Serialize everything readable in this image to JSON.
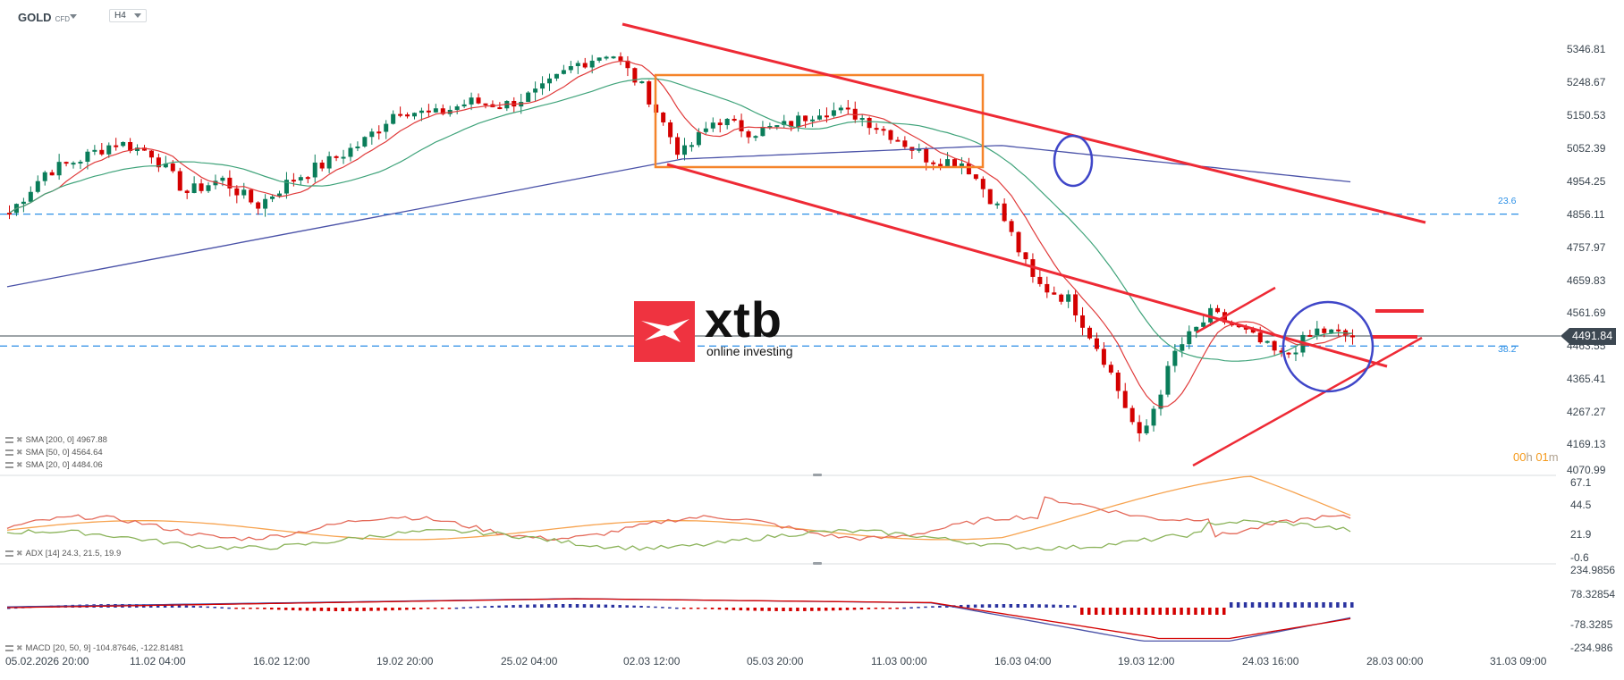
{
  "header": {
    "symbol": "GOLD",
    "symbol_type": "CFD",
    "timeframe": "H4"
  },
  "price_axis": {
    "labels": [
      "5346.81",
      "5248.67",
      "5150.53",
      "5052.39",
      "4954.25",
      "4856.11",
      "4757.97",
      "4659.83",
      "4561.69",
      "4463.55",
      "4365.41",
      "4267.27",
      "4169.13",
      "4070.99"
    ],
    "last_price": "4491.84"
  },
  "adx_axis": {
    "labels": [
      "67.1",
      "44.5",
      "21.9",
      "-0.6"
    ]
  },
  "macd_axis": {
    "labels": [
      "234.9856",
      "78.32854",
      "-78.3285",
      "-234.986"
    ]
  },
  "time_axis": {
    "labels": [
      "05.02.2026 20:00",
      "11.02 04:00",
      "16.02 12:00",
      "19.02 20:00",
      "25.02 04:00",
      "02.03 12:00",
      "05.03 20:00",
      "11.03 00:00",
      "16.03 04:00",
      "19.03 12:00",
      "24.03 16:00",
      "28.03 00:00",
      "31.03 09:00"
    ]
  },
  "indicators": {
    "sma200": "SMA [200, 0] 4967.88",
    "sma50": "SMA [50, 0] 4564.64",
    "sma20": "SMA [20, 0] 4484.06",
    "adx": "ADX [14] 24.3, 21.5, 19.9",
    "macd": "MACD [20, 50, 9] -104.87646, -122.81481"
  },
  "fib_levels": [
    {
      "label": "23.6",
      "price": 4856.11
    },
    {
      "label": "38.2",
      "price": 4463.55
    }
  ],
  "timer": {
    "hours": "00",
    "h": "h",
    "minutes": "01",
    "m": "m"
  },
  "logo": {
    "brand": "xtb",
    "tagline": "online investing"
  },
  "colors": {
    "bull": "#0a7d5a",
    "bear": "#d40000",
    "sma20": "#e03a3a",
    "sma50": "#3fa37a",
    "sma200": "#4a52a8",
    "trendline": "#ee2a35",
    "rect": "#f5842a",
    "circle": "#3f46c8",
    "fib": "#2b8fe6",
    "adx": "#f7a34f",
    "di_plus": "#8bb35a",
    "di_minus": "#e46a5a"
  },
  "chart_data": {
    "type": "candlestick",
    "title": "GOLD CFD H4",
    "instrument": "GOLD",
    "timeframe": "H4",
    "ylim": [
      4070.99,
      5346.81
    ],
    "last_price": 4491.84,
    "x_tick_labels": [
      "05.02.2026 20:00",
      "11.02 04:00",
      "16.02 12:00",
      "19.02 20:00",
      "25.02 04:00",
      "02.03 12:00",
      "05.03 20:00",
      "11.03 00:00",
      "16.03 04:00",
      "19.03 12:00",
      "24.03 16:00",
      "28.03 00:00",
      "31.03 09:00"
    ],
    "close_path_approx": [
      {
        "t": "05.02 20:00",
        "close": 4860
      },
      {
        "t": "07.02",
        "close": 4980
      },
      {
        "t": "09.02",
        "close": 5020
      },
      {
        "t": "11.02",
        "close": 5070
      },
      {
        "t": "13.02",
        "close": 5040
      },
      {
        "t": "14.02",
        "close": 4920
      },
      {
        "t": "16.02",
        "close": 4960
      },
      {
        "t": "17.02",
        "close": 4880
      },
      {
        "t": "18.02",
        "close": 4960
      },
      {
        "t": "19.02",
        "close": 5010
      },
      {
        "t": "20.02",
        "close": 5070
      },
      {
        "t": "22.02",
        "close": 5170
      },
      {
        "t": "24.02",
        "close": 5150
      },
      {
        "t": "25.02",
        "close": 5190
      },
      {
        "t": "26.02",
        "close": 5180
      },
      {
        "t": "27.02",
        "close": 5220
      },
      {
        "t": "01.03",
        "close": 5300
      },
      {
        "t": "02.03",
        "close": 5340
      },
      {
        "t": "02.03 12:00",
        "close": 5220
      },
      {
        "t": "03.03",
        "close": 5030
      },
      {
        "t": "04.03",
        "close": 5140
      },
      {
        "t": "06.03",
        "close": 5100
      },
      {
        "t": "08.03",
        "close": 5120
      },
      {
        "t": "10.03",
        "close": 5170
      },
      {
        "t": "12.03",
        "close": 5150
      },
      {
        "t": "13.03",
        "close": 5090
      },
      {
        "t": "15.03",
        "close": 5020
      },
      {
        "t": "17.03",
        "close": 5010
      },
      {
        "t": "18.03",
        "close": 4870
      },
      {
        "t": "19.03",
        "close": 4650
      },
      {
        "t": "20.03",
        "close": 4600
      },
      {
        "t": "21.03",
        "close": 4420
      },
      {
        "t": "22.03",
        "close": 4180
      },
      {
        "t": "23.03",
        "close": 4450
      },
      {
        "t": "24.03",
        "close": 4560
      },
      {
        "t": "25.03",
        "close": 4500
      },
      {
        "t": "26.03",
        "close": 4430
      },
      {
        "t": "27.03",
        "close": 4510
      },
      {
        "t": "27.03 last",
        "close": 4491.84
      }
    ],
    "series": [
      {
        "name": "SMA 20",
        "last": 4484.06
      },
      {
        "name": "SMA 50",
        "last": 4564.64
      },
      {
        "name": "SMA 200",
        "last": 4967.88
      }
    ],
    "fibonacci": [
      {
        "level": "23.6",
        "price": 4856.11
      },
      {
        "level": "38.2",
        "price": 4463.55
      }
    ],
    "annotations": [
      "Descending channel (red trendlines) from 02.03 high",
      "Orange consolidation rectangle 02.03–14.03 (~5020–5260)",
      "Blue circle breakdown ~17.03",
      "Symmetrical triangle after 23.03 low (~4100)",
      "Blue circle around latest candles ~27.03",
      "Two short red horizontal levels ~4570 and ~4495"
    ],
    "subcharts": [
      {
        "name": "ADX [14]",
        "values": [
          24.3,
          21.5,
          19.9
        ],
        "ylim": [
          -0.6,
          67.1
        ],
        "ticks": [
          67.1,
          44.5,
          21.9,
          -0.6
        ]
      },
      {
        "name": "MACD [20, 50, 9]",
        "values": [
          -104.87646,
          -122.81481
        ],
        "ylim": [
          -234.986,
          234.9856
        ],
        "ticks": [
          234.9856,
          78.32854,
          -78.3285,
          -234.986
        ]
      }
    ]
  }
}
